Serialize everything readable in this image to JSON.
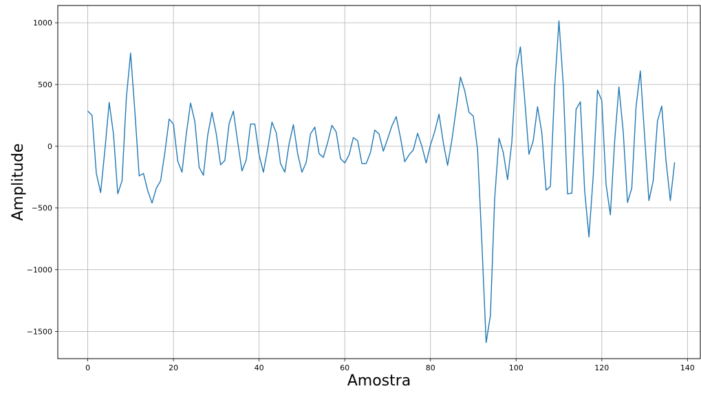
{
  "chart_data": {
    "type": "line",
    "title": "",
    "xlabel": "Amostra",
    "ylabel": "Amplitude",
    "xlim": [
      -7,
      143
    ],
    "ylim": [
      -1720,
      1140
    ],
    "xticks": [
      0,
      20,
      40,
      60,
      80,
      100,
      120,
      140
    ],
    "yticks": [
      1000,
      500,
      0,
      -500,
      -1000,
      -1500
    ],
    "xtick_labels": [
      "0",
      "20",
      "40",
      "60",
      "80",
      "100",
      "120",
      "140"
    ],
    "ytick_labels": [
      "1000",
      "500",
      "0",
      "−500",
      "−1000",
      "−1500"
    ],
    "grid": true,
    "line_color": "#1f77b4",
    "series": [
      {
        "values": [
          285,
          250,
          -220,
          -375,
          -30,
          355,
          100,
          -385,
          -280,
          390,
          755,
          280,
          -240,
          -220,
          -360,
          -460,
          -340,
          -280,
          -50,
          220,
          180,
          -120,
          -210,
          100,
          350,
          200,
          -170,
          -235,
          90,
          275,
          100,
          -150,
          -115,
          185,
          285,
          35,
          -200,
          -110,
          180,
          180,
          -70,
          -210,
          -20,
          195,
          110,
          -140,
          -210,
          20,
          175,
          -60,
          -210,
          -130,
          100,
          155,
          -60,
          -90,
          30,
          170,
          115,
          -100,
          -135,
          -70,
          70,
          45,
          -140,
          -140,
          -50,
          130,
          100,
          -40,
          60,
          165,
          240,
          70,
          -125,
          -70,
          -30,
          105,
          0,
          -135,
          10,
          120,
          260,
          30,
          -155,
          50,
          300,
          560,
          450,
          275,
          245,
          -30,
          -780,
          -1590,
          -1370,
          -420,
          65,
          -50,
          -270,
          35,
          630,
          805,
          380,
          -65,
          45,
          320,
          110,
          -355,
          -325,
          480,
          1015,
          500,
          -385,
          -380,
          300,
          360,
          -360,
          -735,
          -240,
          455,
          370,
          -310,
          -555,
          40,
          480,
          120,
          -455,
          -340,
          320,
          610,
          80,
          -440,
          -280,
          205,
          325,
          -120,
          -440,
          -130
        ]
      }
    ]
  }
}
